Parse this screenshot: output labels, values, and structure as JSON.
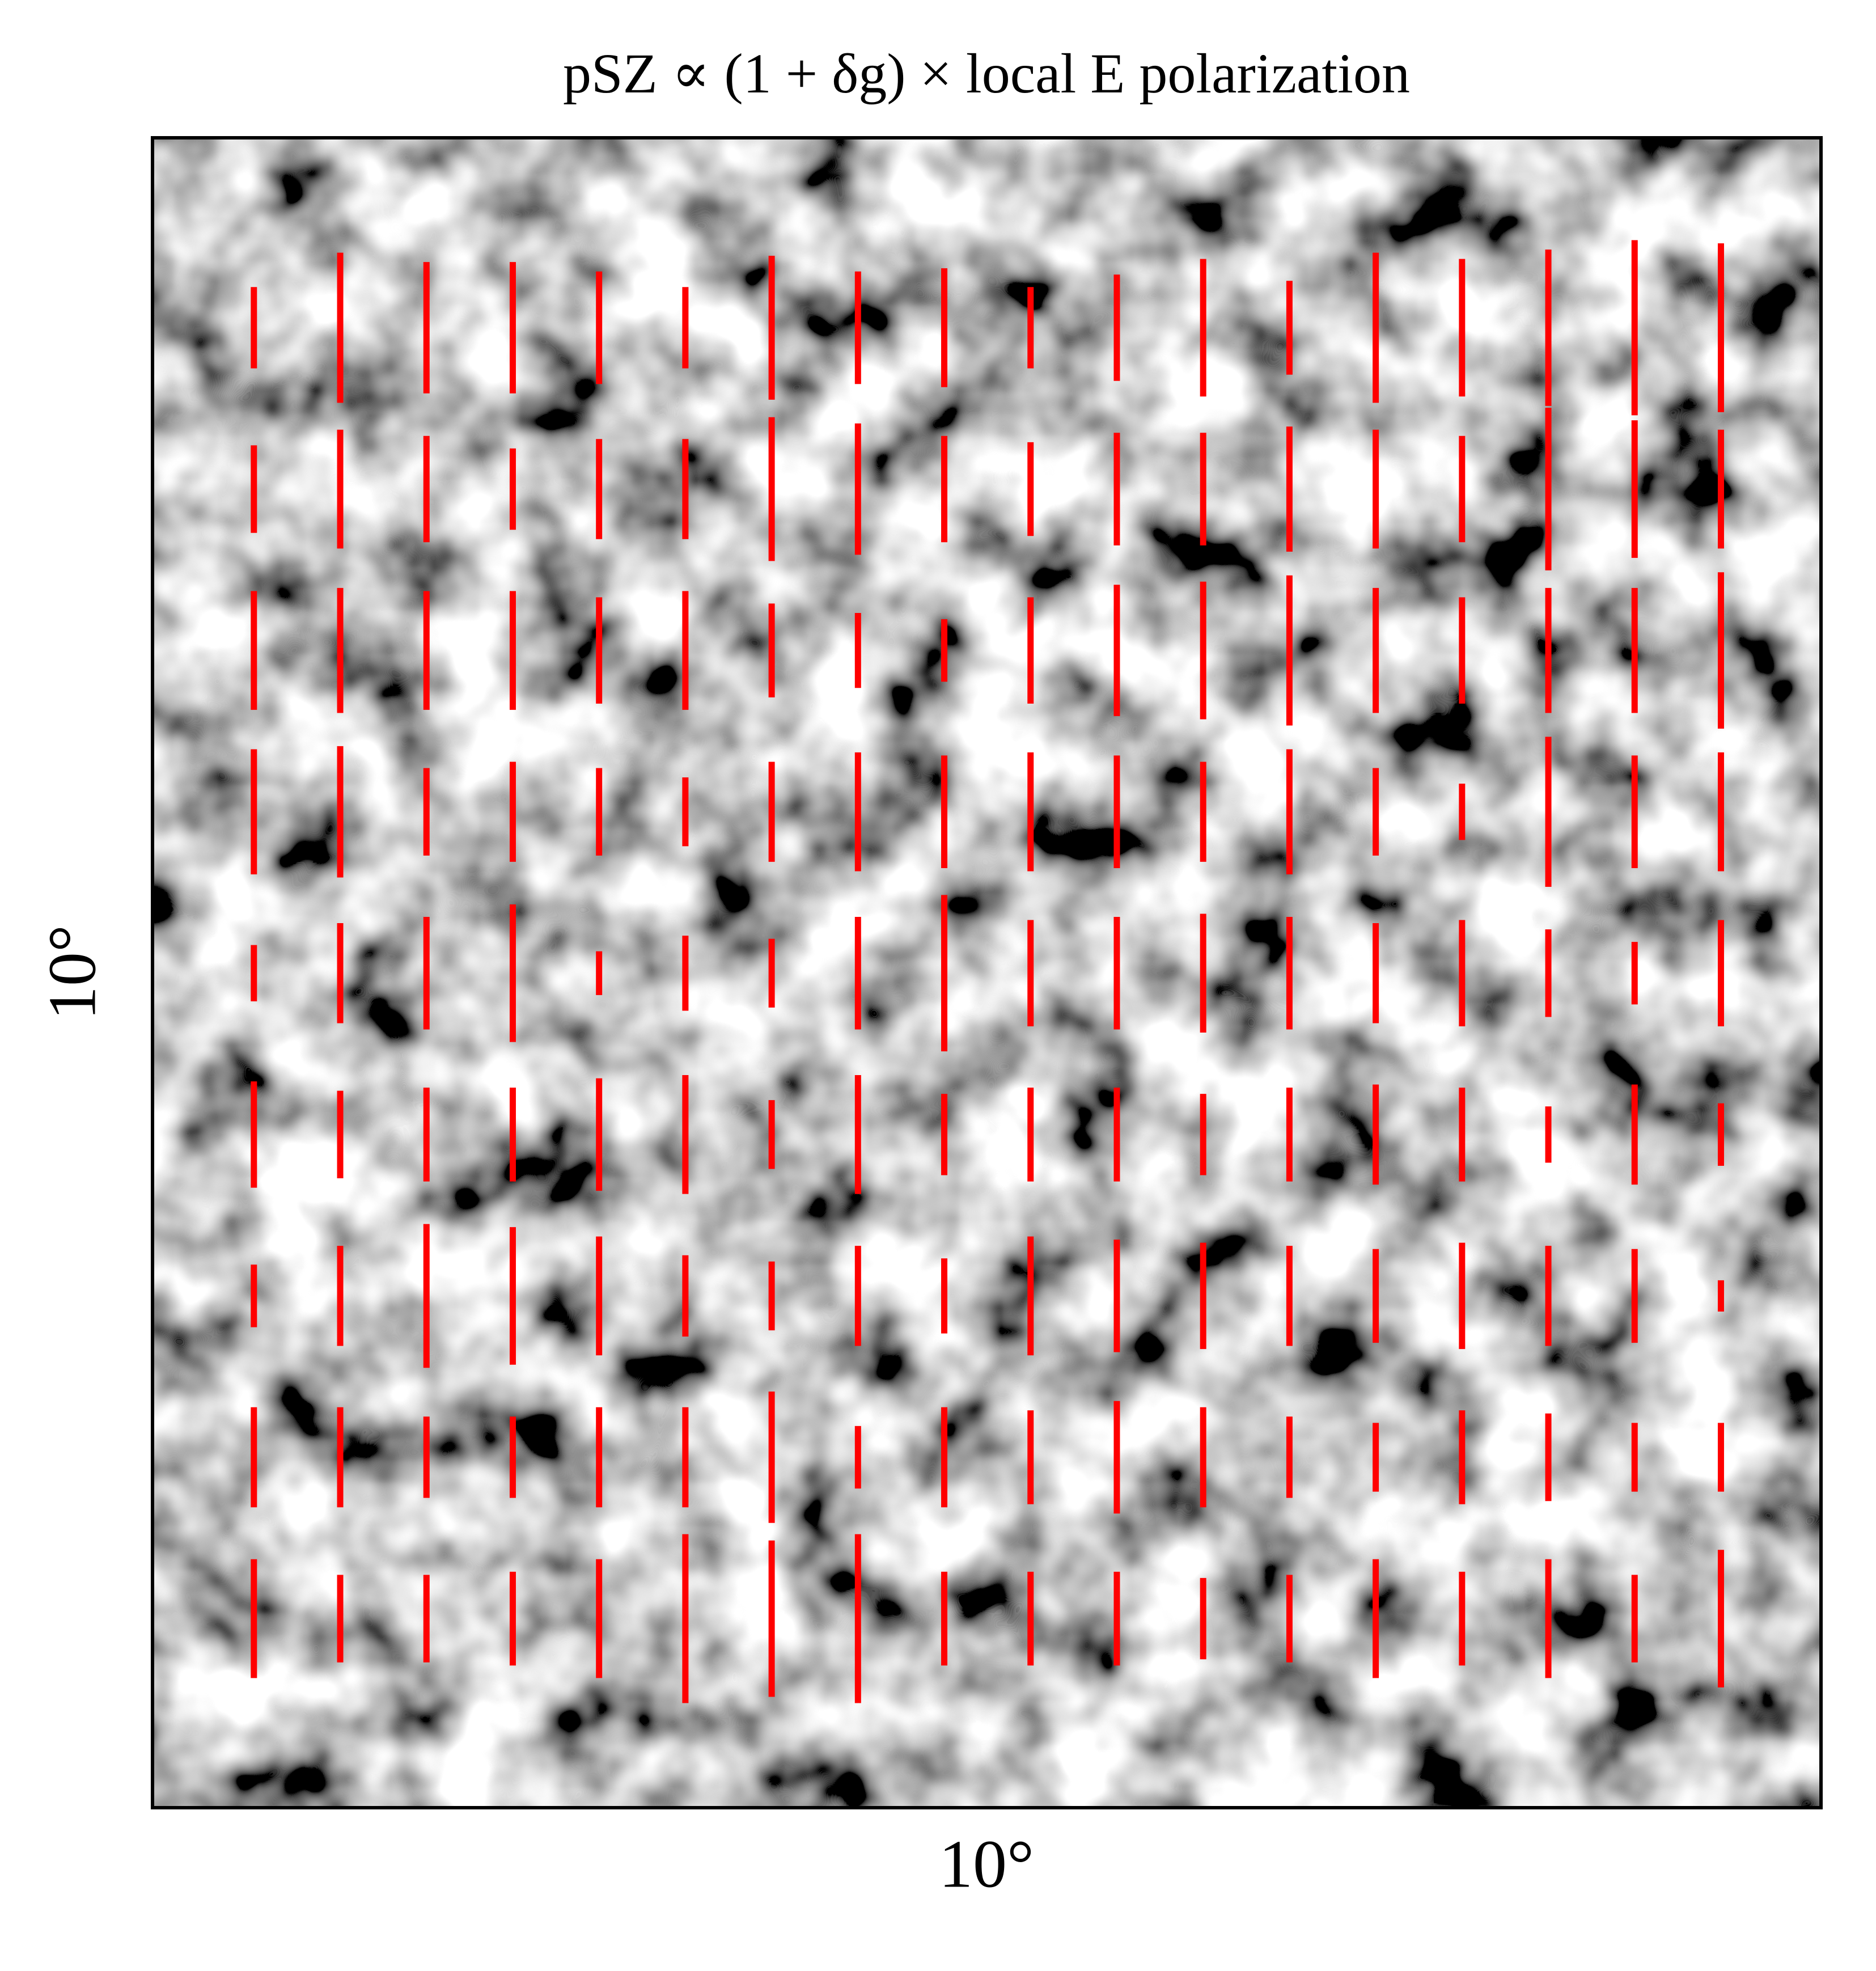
{
  "chart_data": {
    "type": "quiver",
    "title": "pSZ ∝ (1 + δg) × local E polarization",
    "xlabel": "10°",
    "ylabel": "10°",
    "color": "#ff0000",
    "values": [
      [
        65,
        120,
        105,
        105,
        90,
        65,
        115,
        90,
        95,
        65,
        85,
        110,
        75,
        120,
        110,
        125,
        140,
        135
      ],
      [
        70,
        95,
        85,
        65,
        80,
        80,
        115,
        105,
        85,
        75,
        90,
        90,
        100,
        95,
        85,
        130,
        110,
        95
      ],
      [
        95,
        100,
        95,
        95,
        85,
        95,
        75,
        60,
        50,
        85,
        105,
        110,
        120,
        100,
        85,
        100,
        100,
        125
      ],
      [
        100,
        105,
        70,
        80,
        70,
        55,
        80,
        95,
        90,
        95,
        90,
        80,
        100,
        70,
        45,
        120,
        90,
        95
      ],
      [
        45,
        80,
        90,
        110,
        35,
        60,
        55,
        90,
        125,
        85,
        90,
        95,
        90,
        80,
        85,
        70,
        50,
        85
      ],
      [
        85,
        70,
        75,
        75,
        90,
        95,
        55,
        95,
        65,
        75,
        75,
        65,
        75,
        80,
        75,
        45,
        80,
        50
      ],
      [
        50,
        80,
        115,
        110,
        95,
        65,
        55,
        80,
        60,
        95,
        90,
        85,
        80,
        75,
        85,
        80,
        75,
        25
      ],
      [
        80,
        80,
        65,
        65,
        80,
        80,
        105,
        50,
        80,
        75,
        90,
        80,
        65,
        55,
        75,
        70,
        55,
        55
      ],
      [
        95,
        70,
        70,
        75,
        95,
        135,
        125,
        135,
        75,
        75,
        75,
        65,
        70,
        95,
        75,
        95,
        70,
        110
      ]
    ]
  }
}
